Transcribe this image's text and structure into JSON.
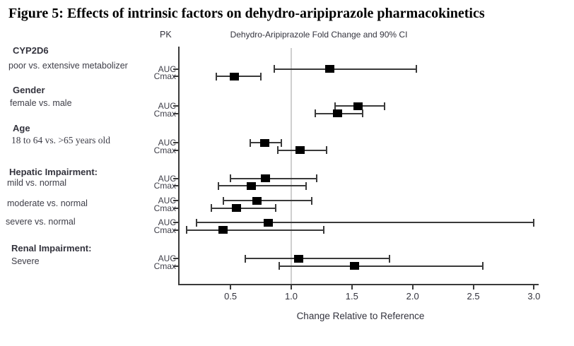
{
  "title": "Figure 5:  Effects of intrinsic factors on dehydro-aripiprazole pharmacokinetics",
  "chart_data": {
    "type": "forest",
    "title": "Figure 5:  Effects of intrinsic factors on dehydro-aripiprazole pharmacokinetics",
    "pk_column_header": "PK",
    "plot_header": "Dehydro-Aripiprazole Fold Change and 90% CI",
    "xlabel": "Change Relative to Reference",
    "ci_level": "90%",
    "reference_line": 1.0,
    "x_ticks": [
      "0.5",
      "1.0",
      "1.5",
      "2.0",
      "2.5",
      "3.0"
    ],
    "x_tick_values": [
      0.5,
      1.0,
      1.5,
      2.0,
      2.5,
      3.0
    ],
    "x_range": [
      0.07,
      3.17
    ],
    "grid": false,
    "marker": "filled-square",
    "groups": [
      {
        "heading": "CYP2D6",
        "comparisons": [
          {
            "label": "poor vs. extensive metabolizer",
            "rows": [
              {
                "pk": "AUC",
                "est": 1.32,
                "lo": 0.86,
                "hi": 2.03
              },
              {
                "pk": "Cmax",
                "est": 0.53,
                "lo": 0.38,
                "hi": 0.75
              }
            ]
          }
        ]
      },
      {
        "heading": "Gender",
        "comparisons": [
          {
            "label": "female vs. male",
            "rows": [
              {
                "pk": "AUC",
                "est": 1.55,
                "lo": 1.36,
                "hi": 1.77
              },
              {
                "pk": "Cmax",
                "est": 1.38,
                "lo": 1.2,
                "hi": 1.59
              }
            ]
          }
        ]
      },
      {
        "heading": "Age",
        "comparisons": [
          {
            "label": "18 to 64 vs. >65 years old",
            "rows": [
              {
                "pk": "AUC",
                "est": 0.78,
                "lo": 0.66,
                "hi": 0.92
              },
              {
                "pk": "Cmax",
                "est": 1.07,
                "lo": 0.89,
                "hi": 1.29
              }
            ]
          }
        ]
      },
      {
        "heading": "Hepatic Impairment:",
        "comparisons": [
          {
            "label": "mild vs. normal",
            "rows": [
              {
                "pk": "AUC",
                "est": 0.79,
                "lo": 0.5,
                "hi": 1.21
              },
              {
                "pk": "Cmax",
                "est": 0.67,
                "lo": 0.4,
                "hi": 1.12
              }
            ]
          },
          {
            "label": "moderate vs. normal",
            "rows": [
              {
                "pk": "AUC",
                "est": 0.72,
                "lo": 0.44,
                "hi": 1.17
              },
              {
                "pk": "Cmax",
                "est": 0.55,
                "lo": 0.34,
                "hi": 0.87
              }
            ]
          },
          {
            "label": "severe vs. normal",
            "rows": [
              {
                "pk": "AUC",
                "est": 0.81,
                "lo": 0.22,
                "hi": 3.0
              },
              {
                "pk": "Cmax",
                "est": 0.44,
                "lo": 0.14,
                "hi": 1.27
              }
            ]
          }
        ]
      },
      {
        "heading": "Renal Impairment:",
        "comparisons": [
          {
            "label": "Severe",
            "rows": [
              {
                "pk": "AUC",
                "est": 1.06,
                "lo": 0.62,
                "hi": 1.81
              },
              {
                "pk": "Cmax",
                "est": 1.52,
                "lo": 0.9,
                "hi": 2.58
              }
            ]
          }
        ]
      }
    ],
    "colors": {
      "marker": "#000000",
      "ci_line": "#3a3a3a",
      "reference_line": "#cfcfcf",
      "text": "#3d3d47",
      "background": "#ffffff"
    }
  }
}
